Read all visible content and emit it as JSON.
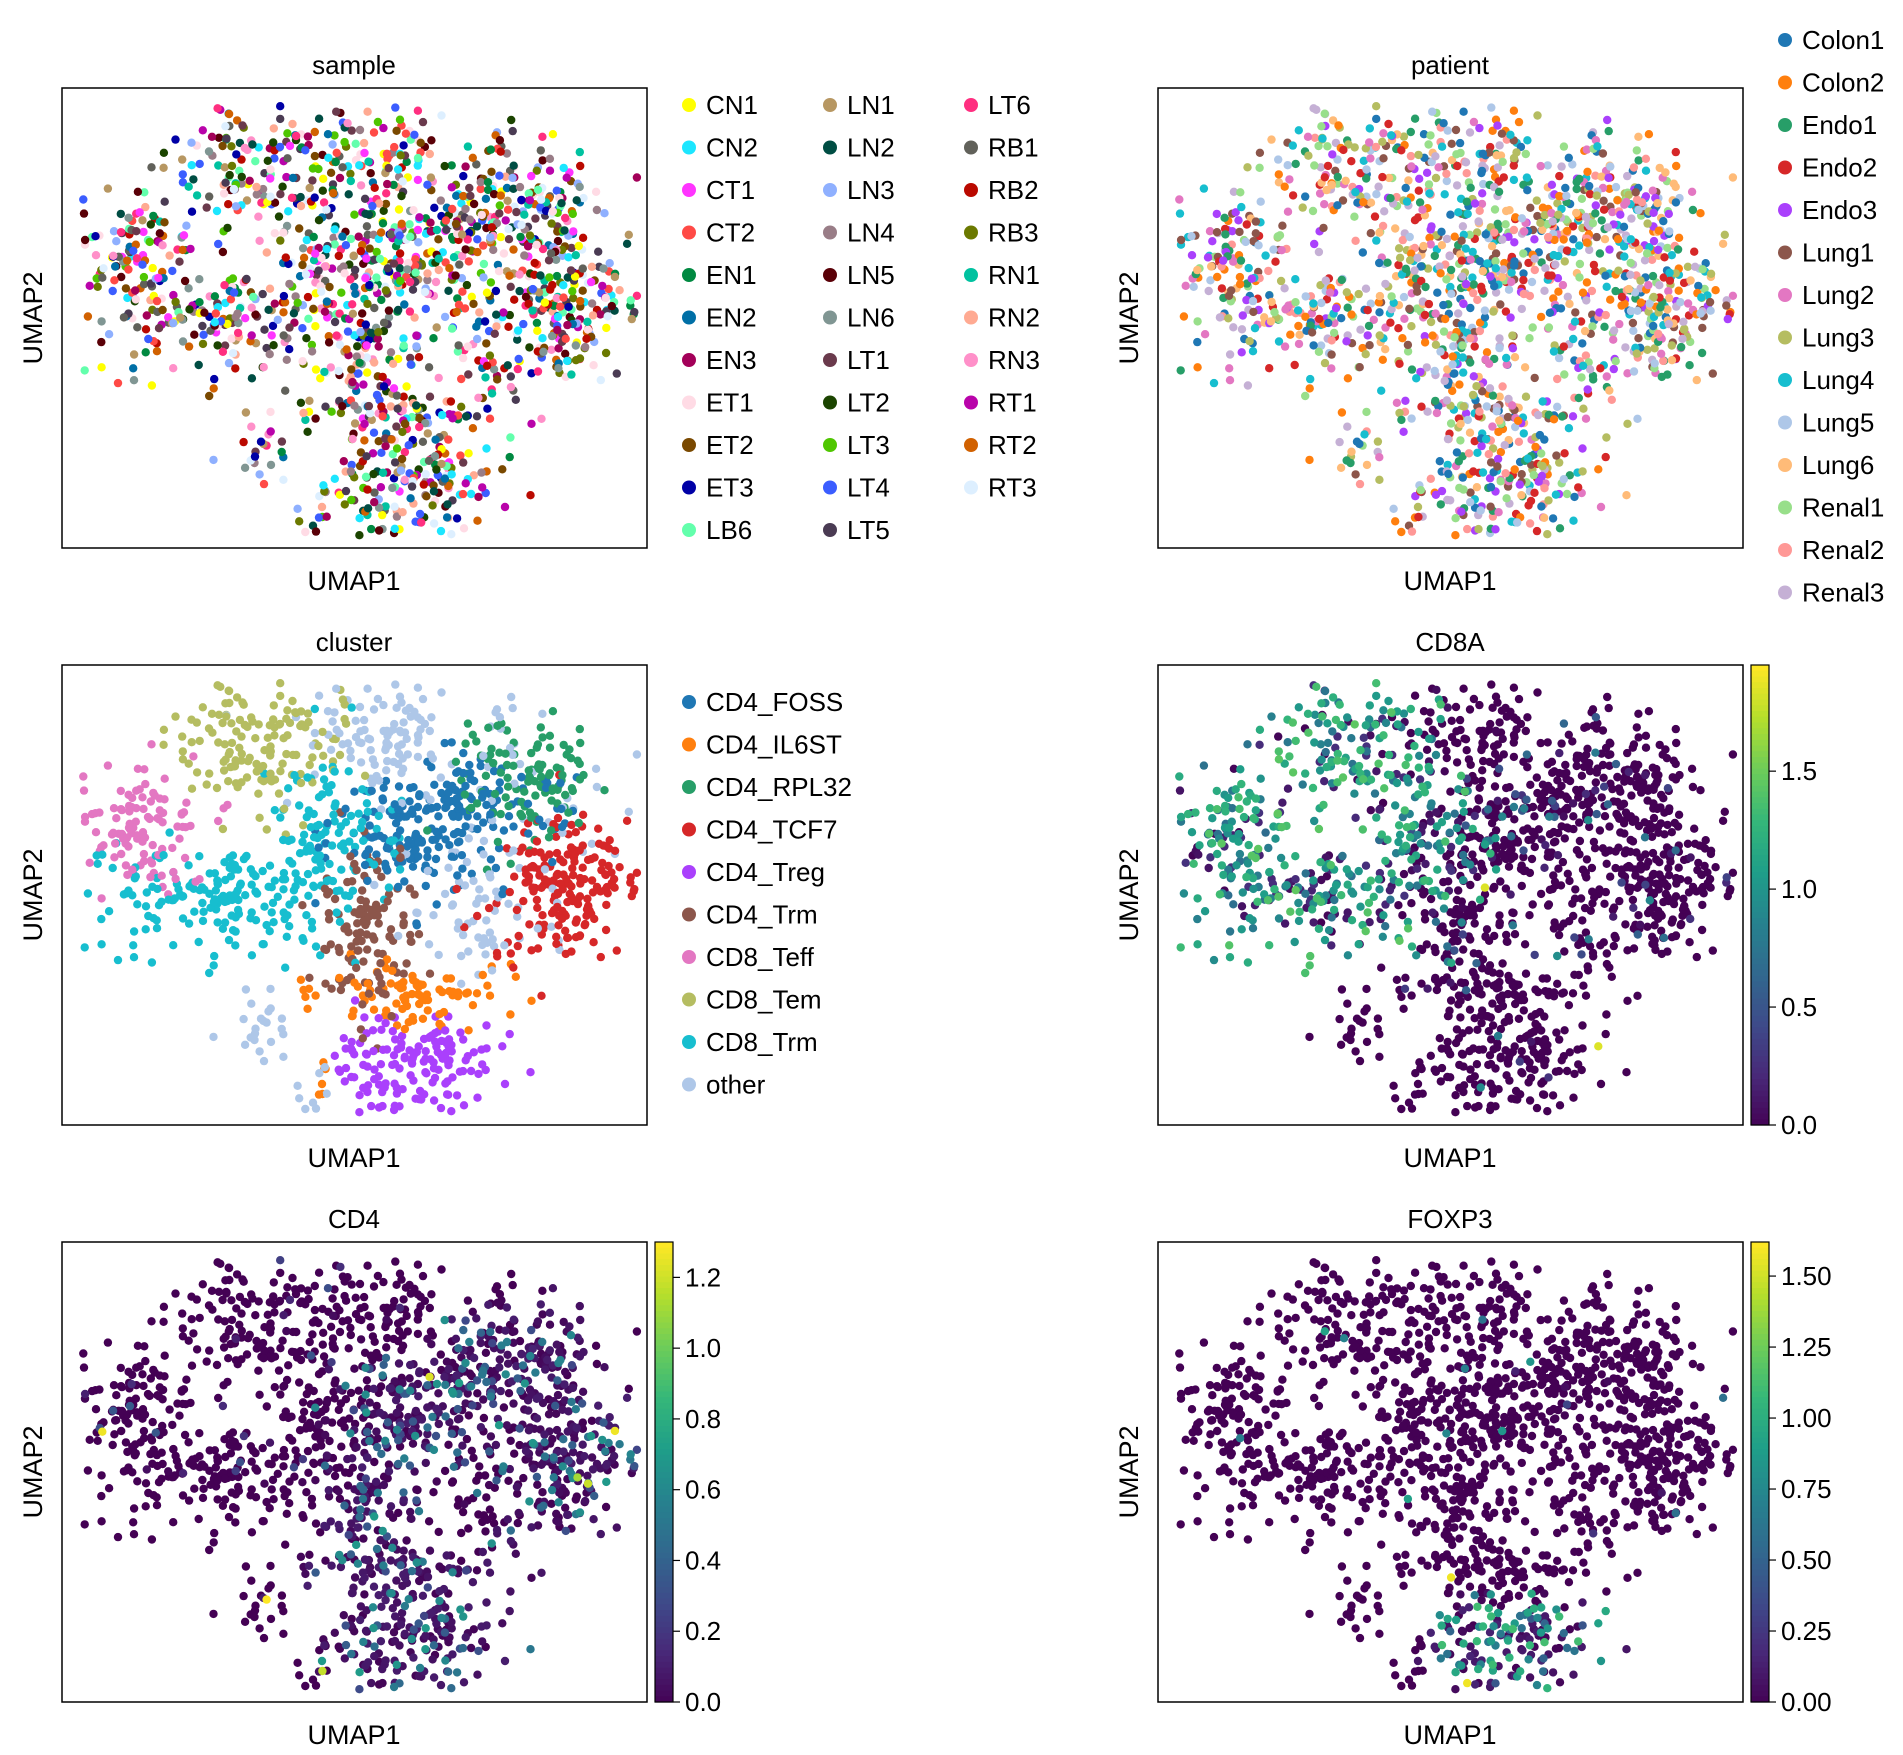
{
  "figure": {
    "bg": "#ffffff",
    "axis_labels": {
      "x": "UMAP1",
      "y": "UMAP2"
    }
  },
  "chart_data": [
    {
      "type": "scatter",
      "title": "sample",
      "xlabel": "UMAP1",
      "ylabel": "UMAP2",
      "color_mode": "categorical",
      "legend": {
        "placement": "right",
        "columns": 3,
        "entries": [
          {
            "name": "CN1",
            "color": "#ffff00"
          },
          {
            "name": "CN2",
            "color": "#1ce6ff"
          },
          {
            "name": "CT1",
            "color": "#ff34ff"
          },
          {
            "name": "CT2",
            "color": "#ff4a46"
          },
          {
            "name": "EN1",
            "color": "#008941"
          },
          {
            "name": "EN2",
            "color": "#006fa6"
          },
          {
            "name": "EN3",
            "color": "#a30059"
          },
          {
            "name": "ET1",
            "color": "#ffdbe5"
          },
          {
            "name": "ET2",
            "color": "#7a4900"
          },
          {
            "name": "ET3",
            "color": "#0000a6"
          },
          {
            "name": "LB6",
            "color": "#63ffac"
          },
          {
            "name": "LN1",
            "color": "#b79762"
          },
          {
            "name": "LN2",
            "color": "#004d43"
          },
          {
            "name": "LN3",
            "color": "#8fb0ff"
          },
          {
            "name": "LN4",
            "color": "#997d87"
          },
          {
            "name": "LN5",
            "color": "#5a0007"
          },
          {
            "name": "LN6",
            "color": "#809693"
          },
          {
            "name": "LT1",
            "color": "#6a3a4c"
          },
          {
            "name": "LT2",
            "color": "#1b4400"
          },
          {
            "name": "LT3",
            "color": "#4fc601"
          },
          {
            "name": "LT4",
            "color": "#3b5dff"
          },
          {
            "name": "LT5",
            "color": "#4a3b53"
          },
          {
            "name": "LT6",
            "color": "#ff2f80"
          },
          {
            "name": "RB1",
            "color": "#61615a"
          },
          {
            "name": "RB2",
            "color": "#ba0900"
          },
          {
            "name": "RB3",
            "color": "#6b7900"
          },
          {
            "name": "RN1",
            "color": "#00c2a0"
          },
          {
            "name": "RN2",
            "color": "#ffaa92"
          },
          {
            "name": "RN3",
            "color": "#ff90c9"
          },
          {
            "name": "RT1",
            "color": "#b903aa"
          },
          {
            "name": "RT2",
            "color": "#d16100"
          },
          {
            "name": "RT3",
            "color": "#ddefff"
          }
        ]
      }
    },
    {
      "type": "scatter",
      "title": "patient",
      "xlabel": "UMAP1",
      "ylabel": "UMAP2",
      "color_mode": "categorical",
      "legend": {
        "placement": "right",
        "columns": 1,
        "entries": [
          {
            "name": "Colon1",
            "color": "#1f77b4"
          },
          {
            "name": "Colon2",
            "color": "#ff7f0e"
          },
          {
            "name": "Endo1",
            "color": "#279e68"
          },
          {
            "name": "Endo2",
            "color": "#d62728"
          },
          {
            "name": "Endo3",
            "color": "#aa40fc"
          },
          {
            "name": "Lung1",
            "color": "#8c564b"
          },
          {
            "name": "Lung2",
            "color": "#e377c2"
          },
          {
            "name": "Lung3",
            "color": "#b5bd61"
          },
          {
            "name": "Lung4",
            "color": "#17becf"
          },
          {
            "name": "Lung5",
            "color": "#aec7e8"
          },
          {
            "name": "Lung6",
            "color": "#ffbb78"
          },
          {
            "name": "Renal1",
            "color": "#98df8a"
          },
          {
            "name": "Renal2",
            "color": "#ff9896"
          },
          {
            "name": "Renal3",
            "color": "#c5b0d5"
          }
        ]
      }
    },
    {
      "type": "scatter",
      "title": "cluster",
      "xlabel": "UMAP1",
      "ylabel": "UMAP2",
      "color_mode": "categorical",
      "legend": {
        "placement": "right",
        "columns": 1,
        "entries": [
          {
            "name": "CD4_FOSS",
            "color": "#1f77b4"
          },
          {
            "name": "CD4_IL6ST",
            "color": "#ff7f0e"
          },
          {
            "name": "CD4_RPL32",
            "color": "#279e68"
          },
          {
            "name": "CD4_TCF7",
            "color": "#d62728"
          },
          {
            "name": "CD4_Treg",
            "color": "#aa40fc"
          },
          {
            "name": "CD4_Trm",
            "color": "#8c564b"
          },
          {
            "name": "CD8_Teff",
            "color": "#e377c2"
          },
          {
            "name": "CD8_Tem",
            "color": "#b5bd61"
          },
          {
            "name": "CD8_Trm",
            "color": "#17becf"
          },
          {
            "name": "other",
            "color": "#aec7e8"
          }
        ]
      }
    },
    {
      "type": "scatter",
      "title": "CD8A",
      "xlabel": "UMAP1",
      "ylabel": "UMAP2",
      "color_mode": "continuous",
      "colormap": "viridis",
      "colorbar": {
        "vmin": 0,
        "vmax": 1.95,
        "ticks": [
          "0.0",
          "0.5",
          "1.0",
          "1.5"
        ]
      }
    },
    {
      "type": "scatter",
      "title": "CD4",
      "xlabel": "UMAP1",
      "ylabel": "UMAP2",
      "color_mode": "continuous",
      "colormap": "viridis",
      "colorbar": {
        "vmin": 0,
        "vmax": 1.3,
        "ticks": [
          "0.0",
          "0.2",
          "0.4",
          "0.6",
          "0.8",
          "1.0",
          "1.2"
        ]
      }
    },
    {
      "type": "scatter",
      "title": "FOXP3",
      "xlabel": "UMAP1",
      "ylabel": "UMAP2",
      "color_mode": "continuous",
      "colormap": "viridis",
      "colorbar": {
        "vmin": 0,
        "vmax": 1.62,
        "ticks": [
          "0.00",
          "0.25",
          "0.50",
          "0.75",
          "1.00",
          "1.25",
          "1.50"
        ]
      }
    }
  ]
}
